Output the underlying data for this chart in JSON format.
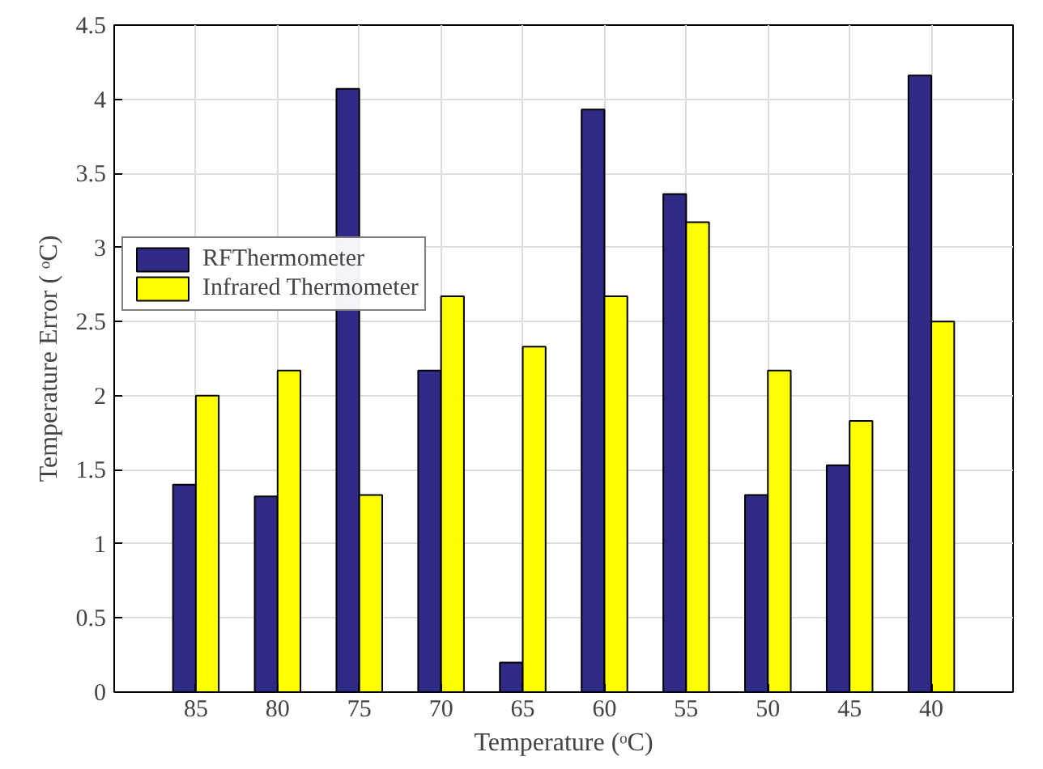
{
  "chart_data": {
    "type": "bar",
    "xlabel": "Temperature (ᵒC)",
    "ylabel": "Temperature Error ( ᵒC)",
    "categories": [
      "85",
      "80",
      "75",
      "70",
      "65",
      "60",
      "55",
      "50",
      "45",
      "40"
    ],
    "series": [
      {
        "name": "RFThermometer",
        "color": "#2e2a85",
        "values": [
          1.4,
          1.32,
          4.07,
          2.17,
          0.2,
          3.93,
          3.36,
          1.33,
          1.53,
          4.16
        ]
      },
      {
        "name": "Infrared Thermometer",
        "color": "#ffff00",
        "values": [
          2.0,
          2.17,
          1.33,
          2.67,
          2.33,
          2.67,
          3.17,
          2.17,
          1.83,
          2.5
        ]
      }
    ],
    "ylim": [
      0,
      4.5
    ],
    "yticks": [
      0,
      0.5,
      1,
      1.5,
      2,
      2.5,
      3,
      3.5,
      4,
      4.5
    ],
    "grid": true,
    "legend": "top left"
  }
}
